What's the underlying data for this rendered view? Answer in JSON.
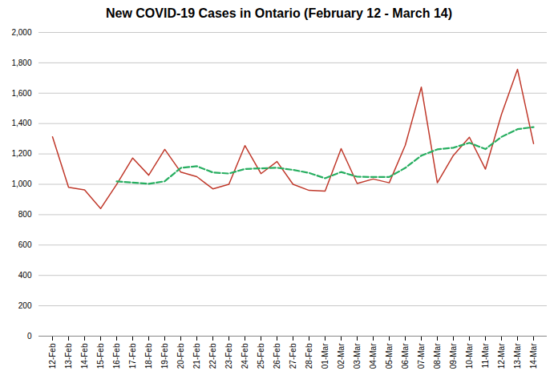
{
  "chart_data": {
    "type": "line",
    "title": "New COVID-19 Cases in Ontario (February 12 - March 14)",
    "categories": [
      "12-Feb",
      "13-Feb",
      "14-Feb",
      "15-Feb",
      "16-Feb",
      "17-Feb",
      "18-Feb",
      "19-Feb",
      "20-Feb",
      "21-Feb",
      "22-Feb",
      "23-Feb",
      "24-Feb",
      "25-Feb",
      "26-Feb",
      "27-Feb",
      "28-Feb",
      "01-Mar",
      "02-Mar",
      "03-Mar",
      "04-Mar",
      "05-Mar",
      "06-Mar",
      "07-Mar",
      "08-Mar",
      "09-Mar",
      "10-Mar",
      "11-Mar",
      "12-Mar",
      "13-Mar",
      "14-Mar"
    ],
    "series": [
      {
        "color": "#c0392b",
        "line_style": "solid",
        "values": [
          1313,
          980,
          963,
          840,
          999,
          1173,
          1060,
          1230,
          1080,
          1050,
          970,
          1000,
          1255,
          1070,
          1150,
          1000,
          960,
          955,
          1235,
          1005,
          1035,
          1010,
          1257,
          1640,
          1010,
          1190,
          1310,
          1100,
          1460,
          1757,
          1268
        ]
      },
      {
        "color": "#27ae60",
        "line_style": "dashed",
        "values": [
          null,
          null,
          null,
          null,
          1019,
          1011,
          1003,
          1020,
          1108,
          1119,
          1078,
          1071,
          1101,
          1105,
          1109,
          1095,
          1075,
          1040,
          1081,
          1050,
          1048,
          1048,
          1108,
          1189,
          1230,
          1241,
          1273,
          1232,
          1312,
          1363,
          1377
        ]
      }
    ],
    "ylim": [
      0,
      2000
    ],
    "yticks": [
      0,
      200,
      400,
      600,
      800,
      {
        "value": 1000,
        "label": "1,000"
      },
      {
        "value": 1200,
        "label": "1,200"
      },
      {
        "value": 1400,
        "label": "1,400"
      },
      {
        "value": 1600,
        "label": "1,600"
      },
      {
        "value": 1800,
        "label": "1,800"
      },
      {
        "value": 2000,
        "label": "2,000"
      }
    ],
    "grid": true
  }
}
